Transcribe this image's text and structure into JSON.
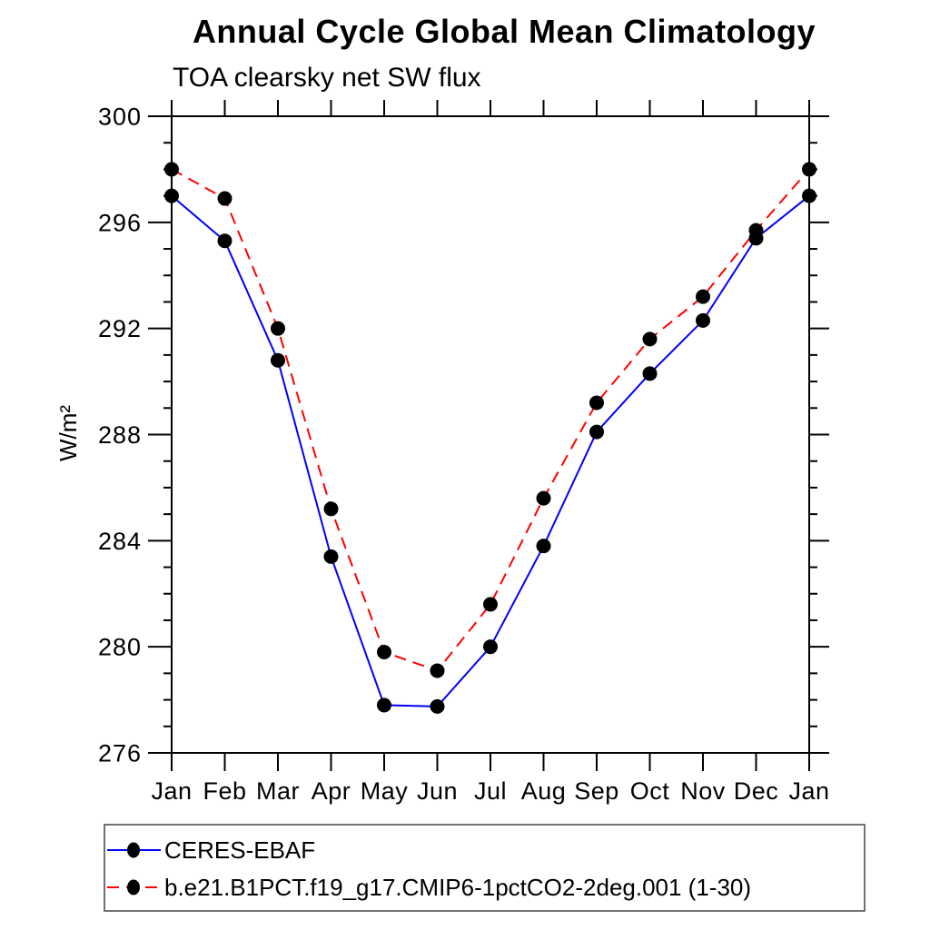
{
  "chart_data": {
    "type": "line",
    "title": "Annual Cycle Global Mean Climatology",
    "subtitle": "TOA clearsky net SW flux",
    "ylabel": "W/m²",
    "xlabel": "",
    "x_categories": [
      "Jan",
      "Feb",
      "Mar",
      "Apr",
      "May",
      "Jun",
      "Jul",
      "Aug",
      "Sep",
      "Oct",
      "Nov",
      "Dec",
      "Jan"
    ],
    "ylim": [
      276,
      300
    ],
    "y_major_step": 4,
    "y_minor_step": 1,
    "y_tick_labels": [
      "276",
      "280",
      "284",
      "288",
      "292",
      "296",
      "300"
    ],
    "grid": "off",
    "legend_position": "bottom-left",
    "frame_color": "#000000",
    "marker_color": "#000000",
    "series": [
      {
        "name": "CERES-EBAF",
        "color": "#0000ff",
        "style": "solid",
        "marker": "filled-circle",
        "values": [
          297.0,
          295.3,
          290.8,
          283.4,
          277.8,
          277.75,
          280.0,
          283.8,
          288.1,
          290.3,
          292.3,
          295.4,
          297.0
        ]
      },
      {
        "name": "b.e21.B1PCT.f19_g17.CMIP6-1pctCO2-2deg.001 (1-30)",
        "color": "#ff0000",
        "style": "dashed",
        "marker": "filled-circle",
        "values": [
          298.0,
          296.9,
          292.0,
          285.2,
          279.8,
          279.1,
          281.6,
          285.6,
          289.2,
          291.6,
          293.2,
          295.7,
          298.0
        ]
      }
    ]
  }
}
